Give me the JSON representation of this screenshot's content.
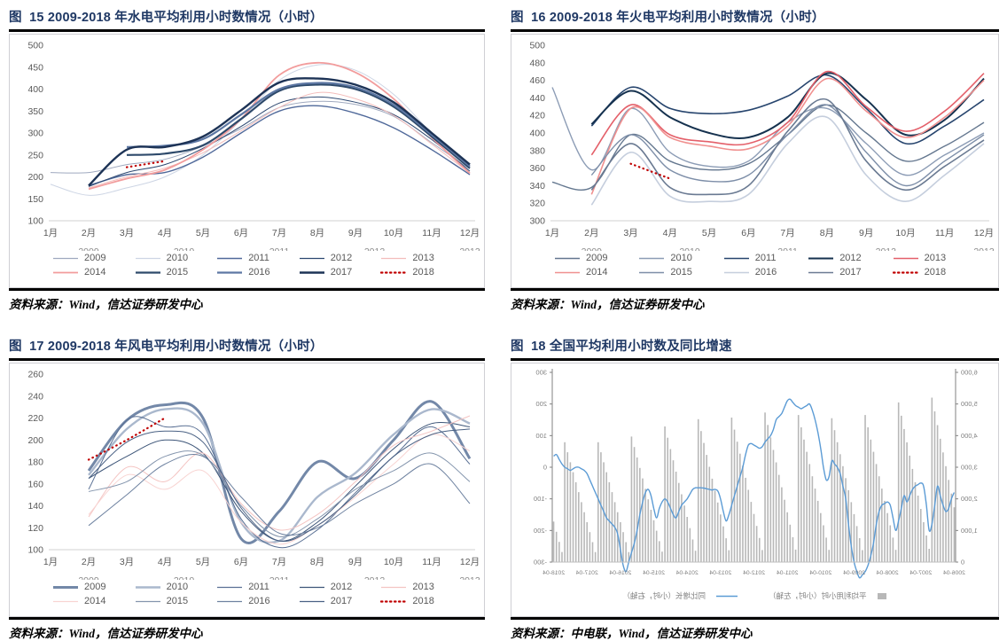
{
  "figures": [
    {
      "title": "图  15 2009-2018 年水电平均利用小时数情况（小时）",
      "source_prefix": "资料来源：",
      "source_rest": "Wind，信达证券研发中心",
      "chart_index": 0
    },
    {
      "title": "图  16 2009-2018 年火电平均利用小时数情况（小时）",
      "source_prefix": "资料来源：",
      "source_rest": "Wind，信达证券研发中心",
      "chart_index": 1
    },
    {
      "title": "图  17 2009-2018 年风电平均利用小时数情况（小时）",
      "source_prefix": "资料来源：",
      "source_rest": "Wind，信达证券研发中心",
      "chart_index": 2
    },
    {
      "title": "图  18 全国平均利用小时数及同比增速",
      "source_prefix": "资料来源：",
      "source_rest": "中电联，Wind，信达证券研发中心",
      "chart_index": 3
    }
  ],
  "colors": {
    "title_navy": "#1f3864",
    "tick_gray": "#595959",
    "axis_gray": "#d0d0d0",
    "red_dotted": "#c00000",
    "bar_gray": "#b8b8b8",
    "line_blue": "#5b9bd5"
  },
  "chart_data": [
    {
      "type": "line",
      "title": "2009-2018 年水电平均利用小时数情况（小时）",
      "x_labels": [
        "1月",
        "2月",
        "3月",
        "4月",
        "5月",
        "6月",
        "7月",
        "8月",
        "9月",
        "10月",
        "11月",
        "12月"
      ],
      "sub_x_labels": [
        {
          "pos": 2,
          "text": "2009"
        },
        {
          "pos": 4.5,
          "text": "2010"
        },
        {
          "pos": 7,
          "text": "2011"
        },
        {
          "pos": 9.5,
          "text": "2012"
        },
        {
          "pos": 12,
          "text": "2013"
        }
      ],
      "ylim": [
        100,
        500
      ],
      "ytick_step": 50,
      "grid": false,
      "legend_position": "bottom",
      "series": [
        {
          "name": "2009",
          "color": "#9fa9bf",
          "w": 1,
          "dash": false,
          "values": [
            210,
            210,
            228,
            240,
            270,
            310,
            358,
            372,
            365,
            338,
            278,
            218
          ]
        },
        {
          "name": "2010",
          "color": "#cdd5e4",
          "w": 1,
          "dash": false,
          "values": [
            183,
            158,
            175,
            200,
            250,
            330,
            420,
            455,
            443,
            388,
            300,
            222
          ]
        },
        {
          "name": "2011",
          "color": "#50699a",
          "w": 1.4,
          "dash": false,
          "values": [
            null,
            180,
            205,
            210,
            245,
            300,
            350,
            362,
            345,
            312,
            262,
            205
          ]
        },
        {
          "name": "2012",
          "color": "#2c4770",
          "w": 1,
          "dash": false,
          "values": [
            null,
            178,
            210,
            228,
            265,
            315,
            368,
            382,
            370,
            342,
            285,
            213
          ]
        },
        {
          "name": "2013",
          "color": "#f3bdbb",
          "w": 1,
          "dash": false,
          "values": [
            null,
            175,
            200,
            220,
            255,
            305,
            358,
            392,
            378,
            340,
            275,
            208
          ]
        },
        {
          "name": "2014",
          "color": "#f29c9c",
          "w": 1.8,
          "dash": false,
          "values": [
            null,
            172,
            196,
            216,
            262,
            332,
            432,
            460,
            438,
            378,
            290,
            208
          ]
        },
        {
          "name": "2015",
          "color": "#2e4a6b",
          "w": 2.2,
          "dash": false,
          "values": [
            null,
            null,
            250,
            253,
            272,
            332,
            396,
            410,
            400,
            360,
            292,
            220
          ]
        },
        {
          "name": "2016",
          "color": "#5d77a3",
          "w": 2.2,
          "dash": false,
          "values": [
            null,
            null,
            268,
            271,
            286,
            342,
            400,
            414,
            404,
            364,
            296,
            224
          ]
        },
        {
          "name": "2017",
          "color": "#1d3356",
          "w": 2.4,
          "dash": false,
          "values": [
            null,
            180,
            262,
            268,
            292,
            352,
            415,
            424,
            410,
            370,
            300,
            228
          ]
        },
        {
          "name": "2018",
          "color": "#c00000",
          "w": 2.2,
          "dash": true,
          "values": [
            null,
            null,
            222,
            236,
            null,
            null,
            null,
            null,
            null,
            null,
            null,
            null
          ]
        }
      ]
    },
    {
      "type": "line",
      "title": "2009-2018 年火电平均利用小时数情况（小时）",
      "x_labels": [
        "1月",
        "2月",
        "3月",
        "4月",
        "5月",
        "6月",
        "7月",
        "8月",
        "9月",
        "10月",
        "11月",
        "12月"
      ],
      "sub_x_labels": [
        {
          "pos": 2,
          "text": "2009"
        },
        {
          "pos": 4.5,
          "text": "2010"
        },
        {
          "pos": 7,
          "text": "2011"
        },
        {
          "pos": 9.5,
          "text": "2012"
        },
        {
          "pos": 12,
          "text": "2013"
        }
      ],
      "ylim": [
        300,
        500
      ],
      "ytick_step": 20,
      "grid": false,
      "legend_position": "bottom",
      "series": [
        {
          "name": "2009",
          "color": "#64778f",
          "w": 1.4,
          "dash": false,
          "values": [
            344,
            338,
            398,
            368,
            358,
            365,
            398,
            432,
            400,
            368,
            385,
            412
          ]
        },
        {
          "name": "2010",
          "color": "#8c9cb5",
          "w": 1.4,
          "dash": false,
          "values": [
            452,
            358,
            428,
            378,
            362,
            368,
            412,
            428,
            388,
            352,
            375,
            400
          ]
        },
        {
          "name": "2011",
          "color": "#27456e",
          "w": 1.6,
          "dash": false,
          "values": [
            null,
            408,
            452,
            428,
            422,
            426,
            442,
            466,
            428,
            388,
            408,
            438
          ]
        },
        {
          "name": "2012",
          "color": "#16324f",
          "w": 2,
          "dash": false,
          "values": [
            null,
            410,
            448,
            418,
            400,
            395,
            418,
            468,
            438,
            398,
            415,
            462
          ]
        },
        {
          "name": "2013",
          "color": "#e4606a",
          "w": 1.6,
          "dash": false,
          "values": [
            null,
            375,
            432,
            398,
            390,
            388,
            412,
            470,
            430,
            402,
            425,
            468
          ]
        },
        {
          "name": "2014",
          "color": "#f0908f",
          "w": 1.6,
          "dash": false,
          "values": [
            null,
            330,
            428,
            395,
            385,
            382,
            408,
            462,
            425,
            395,
            418,
            460
          ]
        },
        {
          "name": "2015",
          "color": "#7d8ea8",
          "w": 1.4,
          "dash": false,
          "values": [
            null,
            352,
            398,
            358,
            345,
            352,
            398,
            432,
            378,
            340,
            368,
            398
          ]
        },
        {
          "name": "2016",
          "color": "#c5cedd",
          "w": 1.6,
          "dash": false,
          "values": [
            null,
            318,
            378,
            328,
            322,
            330,
            388,
            418,
            352,
            322,
            352,
            388
          ]
        },
        {
          "name": "2017",
          "color": "#6a7a92",
          "w": 1.6,
          "dash": false,
          "values": [
            null,
            335,
            388,
            338,
            330,
            340,
            402,
            438,
            368,
            335,
            362,
            392
          ]
        },
        {
          "name": "2018",
          "color": "#c00000",
          "w": 2.2,
          "dash": true,
          "values": [
            null,
            null,
            365,
            348,
            null,
            null,
            null,
            null,
            null,
            null,
            null,
            null
          ]
        }
      ]
    },
    {
      "type": "line",
      "title": "2009-2018 年风电平均利用小时数情况（小时）",
      "x_labels": [
        "1月",
        "2月",
        "3月",
        "4月",
        "5月",
        "6月",
        "7月",
        "8月",
        "9月",
        "10月",
        "11月",
        "12月"
      ],
      "sub_x_labels": [
        {
          "pos": 2,
          "text": "2009"
        },
        {
          "pos": 4.5,
          "text": "2010"
        },
        {
          "pos": 7,
          "text": "2011"
        },
        {
          "pos": 9.5,
          "text": "2012"
        },
        {
          "pos": 12,
          "text": "2013"
        }
      ],
      "ylim": [
        100,
        260
      ],
      "ytick_step": 20,
      "grid": false,
      "legend_position": "bottom",
      "series": [
        {
          "name": "2009",
          "color": "#7388a8",
          "w": 3,
          "dash": false,
          "values": [
            null,
            172,
            218,
            232,
            220,
            110,
            135,
            180,
            165,
            200,
            235,
            183
          ]
        },
        {
          "name": "2010",
          "color": "#aab8cd",
          "w": 2.4,
          "dash": false,
          "values": [
            null,
            168,
            210,
            228,
            215,
            125,
            108,
            148,
            170,
            205,
            228,
            215
          ]
        },
        {
          "name": "2011",
          "color": "#5a7094",
          "w": 1,
          "dash": false,
          "values": [
            null,
            155,
            218,
            212,
            205,
            128,
            102,
            118,
            152,
            185,
            212,
            178
          ]
        },
        {
          "name": "2012",
          "color": "#3d5578",
          "w": 1,
          "dash": false,
          "values": [
            null,
            165,
            185,
            200,
            188,
            135,
            108,
            125,
            158,
            192,
            215,
            212
          ]
        },
        {
          "name": "2013",
          "color": "#f4c4c2",
          "w": 1,
          "dash": false,
          "values": [
            null,
            130,
            175,
            162,
            188,
            142,
            118,
            132,
            162,
            195,
            208,
            222
          ]
        },
        {
          "name": "2014",
          "color": "#f8d4d2",
          "w": 1,
          "dash": false,
          "values": [
            null,
            132,
            168,
            155,
            172,
            125,
            105,
            122,
            148,
            178,
            205,
            190
          ]
        },
        {
          "name": "2015",
          "color": "#8495ad",
          "w": 1,
          "dash": false,
          "values": [
            null,
            153,
            162,
            185,
            186,
            140,
            112,
            128,
            155,
            172,
            188,
            162
          ]
        },
        {
          "name": "2016",
          "color": "#6e82a0",
          "w": 1,
          "dash": false,
          "values": [
            null,
            122,
            150,
            178,
            185,
            148,
            115,
            120,
            142,
            160,
            178,
            142
          ]
        },
        {
          "name": "2017",
          "color": "#4a6184",
          "w": 1,
          "dash": false,
          "values": [
            null,
            165,
            198,
            208,
            198,
            138,
            108,
            122,
            150,
            185,
            205,
            210
          ]
        },
        {
          "name": "2018",
          "color": "#c00000",
          "w": 2.2,
          "dash": true,
          "values": [
            null,
            182,
            200,
            220,
            null,
            null,
            null,
            null,
            null,
            null,
            null,
            null
          ]
        }
      ]
    },
    {
      "type": "combo_bar_line",
      "title": "全国平均利用小时数及同比增速",
      "mirrored_rendering": true,
      "x_tick_labels": [
        "2006-04",
        "2007-04",
        "2008-04",
        "2009-04",
        "2010-04",
        "2011-04",
        "2012-04",
        "2013-04",
        "2014-04",
        "2015-04",
        "2016-04",
        "2017-04",
        "2018-04"
      ],
      "x_tick_every": 12,
      "left_ylim": [
        0,
        6000
      ],
      "left_tick_labels": [
        "0",
        "1,000",
        "2,000",
        "3,000",
        "4,000",
        "5,000",
        "6,000"
      ],
      "right_ylim": [
        -300,
        300
      ],
      "right_tick_labels": [
        "-300",
        "-200",
        "-100",
        "0",
        "100",
        "200",
        "300"
      ],
      "legend": [
        {
          "label": "平均利用小时（小时，左轴）",
          "type": "bar",
          "color": "#b8b8b8"
        },
        {
          "label": "同比增长（小时，右轴）",
          "type": "line",
          "color": "#5b9bd5"
        }
      ],
      "bar_values": [
        1733,
        2167,
        2600,
        3033,
        3467,
        3900,
        4333,
        4767,
        5200,
        421,
        842,
        1263,
        1683,
        2104,
        2525,
        2946,
        3367,
        3788,
        4208,
        4629,
        5050,
        388,
        775,
        1163,
        1550,
        1938,
        2325,
        2713,
        3100,
        3488,
        3875,
        4263,
        4650,
        379,
        758,
        1138,
        1517,
        1896,
        2275,
        2654,
        3033,
        3413,
        3792,
        4171,
        4550,
        388,
        775,
        1163,
        1550,
        1938,
        2325,
        2713,
        3100,
        3488,
        3875,
        4263,
        4650,
        394,
        788,
        1183,
        1577,
        1971,
        2365,
        2759,
        3153,
        3548,
        3942,
        4336,
        4730,
        381,
        762,
        1143,
        1523,
        1904,
        2285,
        2666,
        3047,
        3428,
        3808,
        4189,
        4570,
        377,
        753,
        1130,
        1507,
        1883,
        2260,
        2637,
        3013,
        3390,
        3767,
        4143,
        4520,
        358,
        715,
        1073,
        1430,
        1788,
        2145,
        2503,
        2860,
        3218,
        3575,
        3933,
        4290,
        331,
        662,
        993,
        1323,
        1654,
        1985,
        2316,
        2647,
        2978,
        3308,
        3639,
        3970,
        316,
        632,
        948,
        1263,
        1579,
        1895,
        2211,
        2527,
        2843,
        3158,
        3474,
        3790,
        316,
        632,
        948,
        1263,
        1579,
        1895,
        2211,
        2527,
        2843,
        3158,
        3474,
        3790,
        320,
        640,
        960,
        1280
      ],
      "line_values": [
        -80,
        -100,
        -130,
        -140,
        -120,
        -90,
        -60,
        -120,
        -180,
        -200,
        -120,
        -60,
        -50,
        -55,
        -60,
        -70,
        -90,
        -110,
        -90,
        -130,
        -170,
        -200,
        -160,
        -120,
        -110,
        -115,
        -120,
        -140,
        -180,
        -240,
        -280,
        -310,
        -330,
        -340,
        -350,
        -330,
        -300,
        -250,
        -180,
        -100,
        -60,
        -20,
        0,
        10,
        20,
        -30,
        -40,
        0,
        60,
        110,
        150,
        180,
        200,
        195,
        190,
        185,
        190,
        195,
        205,
        215,
        210,
        190,
        170,
        160,
        150,
        120,
        100,
        90,
        80,
        65,
        60,
        65,
        70,
        75,
        70,
        40,
        0,
        -30,
        -60,
        -90,
        -120,
        -150,
        -170,
        -140,
        -100,
        -75,
        -70,
        -72,
        -70,
        -68,
        -66,
        -65,
        -65,
        -65,
        -70,
        -85,
        -100,
        -110,
        -120,
        -140,
        -160,
        -150,
        -130,
        -110,
        -100,
        -110,
        -130,
        -160,
        -130,
        -90,
        -70,
        -80,
        -110,
        -150,
        -200,
        -240,
        -270,
        -300,
        -330,
        -310,
        -260,
        -210,
        -190,
        -180,
        -170,
        -160,
        -140,
        -120,
        -100,
        -80,
        -60,
        -40,
        -20,
        -10,
        -5,
        0,
        0,
        -5,
        -10,
        -5,
        0,
        10,
        25,
        40,
        35
      ]
    }
  ]
}
